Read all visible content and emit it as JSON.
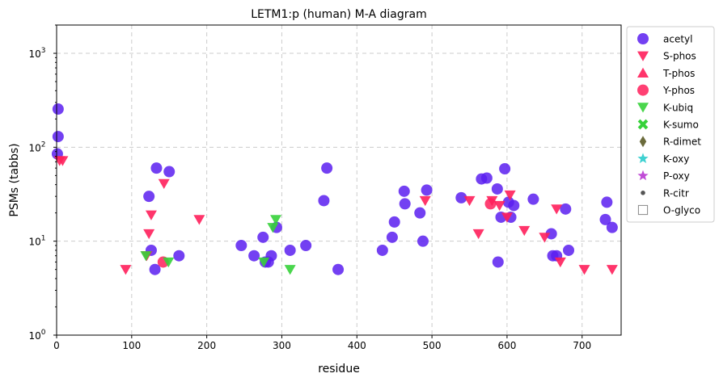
{
  "chart_data": {
    "type": "scatter",
    "title": "LETM1:p (human) M-A diagram",
    "xlabel": "residue",
    "ylabel": "PSMs (tabbs)",
    "xlim": [
      0,
      752
    ],
    "ylim": [
      1,
      2000
    ],
    "yscale": "log",
    "grid": true,
    "legend_position": "right-outside",
    "x_ticks": [
      0,
      100,
      200,
      300,
      400,
      500,
      600,
      700
    ],
    "y_ticks": [
      {
        "value": 1,
        "base": "10",
        "exp": "0"
      },
      {
        "value": 10,
        "base": "10",
        "exp": "1"
      },
      {
        "value": 100,
        "base": "10",
        "exp": "2"
      },
      {
        "value": 1000,
        "base": "10",
        "exp": "3"
      }
    ],
    "series": [
      {
        "name": "acetyl",
        "marker": "circle",
        "color": "#5a1ff0",
        "points": [
          [
            2,
            255
          ],
          [
            2,
            130
          ],
          [
            1,
            85
          ],
          [
            133,
            60
          ],
          [
            150,
            55
          ],
          [
            123,
            30
          ],
          [
            126,
            8
          ],
          [
            131,
            5
          ],
          [
            163,
            7
          ],
          [
            246,
            9
          ],
          [
            263,
            7
          ],
          [
            275,
            11
          ],
          [
            278,
            6
          ],
          [
            282,
            6
          ],
          [
            286,
            7
          ],
          [
            293,
            14
          ],
          [
            311,
            8
          ],
          [
            332,
            9
          ],
          [
            356,
            27
          ],
          [
            360,
            60
          ],
          [
            375,
            5
          ],
          [
            434,
            8
          ],
          [
            447,
            11
          ],
          [
            450,
            16
          ],
          [
            463,
            34
          ],
          [
            464,
            25
          ],
          [
            484,
            20
          ],
          [
            488,
            10
          ],
          [
            493,
            35
          ],
          [
            539,
            29
          ],
          [
            566,
            46
          ],
          [
            573,
            47
          ],
          [
            587,
            36
          ],
          [
            588,
            6
          ],
          [
            592,
            18
          ],
          [
            597,
            59
          ],
          [
            602,
            26
          ],
          [
            605,
            18
          ],
          [
            609,
            24
          ],
          [
            635,
            28
          ],
          [
            659,
            12
          ],
          [
            661,
            7
          ],
          [
            666,
            7
          ],
          [
            678,
            22
          ],
          [
            682,
            8
          ],
          [
            731,
            17
          ],
          [
            733,
            26
          ],
          [
            740,
            14
          ]
        ]
      },
      {
        "name": "S-phos",
        "marker": "triangle-down",
        "color": "#ff1f5b",
        "points": [
          [
            4,
            72
          ],
          [
            8,
            72
          ],
          [
            92,
            5
          ],
          [
            120,
            7
          ],
          [
            123,
            12
          ],
          [
            126,
            19
          ],
          [
            143,
            41
          ],
          [
            190,
            17
          ],
          [
            491,
            27
          ],
          [
            550,
            27
          ],
          [
            562,
            12
          ],
          [
            580,
            27
          ],
          [
            590,
            24
          ],
          [
            600,
            18
          ],
          [
            604,
            31
          ],
          [
            623,
            13
          ],
          [
            650,
            11
          ],
          [
            666,
            22
          ],
          [
            671,
            6
          ],
          [
            703,
            5
          ],
          [
            740,
            5
          ]
        ]
      },
      {
        "name": "T-phos",
        "marker": "triangle-up",
        "color": "#ff1f5b",
        "points": []
      },
      {
        "name": "Y-phos",
        "marker": "circle",
        "color": "#ff1f5b",
        "points": [
          [
            142,
            6
          ],
          [
            578,
            25
          ]
        ]
      },
      {
        "name": "K-ubiq",
        "marker": "triangle-down",
        "color": "#36d23a",
        "points": [
          [
            119,
            7
          ],
          [
            149,
            6
          ],
          [
            276,
            6
          ],
          [
            288,
            14
          ],
          [
            292,
            17
          ],
          [
            311,
            5
          ]
        ]
      },
      {
        "name": "K-sumo",
        "marker": "x",
        "color": "#36d23a",
        "points": []
      },
      {
        "name": "R-dimet",
        "marker": "diamond",
        "color": "#6b6b3c",
        "points": []
      },
      {
        "name": "K-oxy",
        "marker": "star",
        "color": "#3fd1d1",
        "points": []
      },
      {
        "name": "P-oxy",
        "marker": "star",
        "color": "#c04cd6",
        "points": []
      },
      {
        "name": "R-citr",
        "marker": "dot",
        "color": "#555555",
        "points": []
      },
      {
        "name": "O-glyco",
        "marker": "square-open",
        "color": "#888888",
        "points": []
      }
    ]
  }
}
